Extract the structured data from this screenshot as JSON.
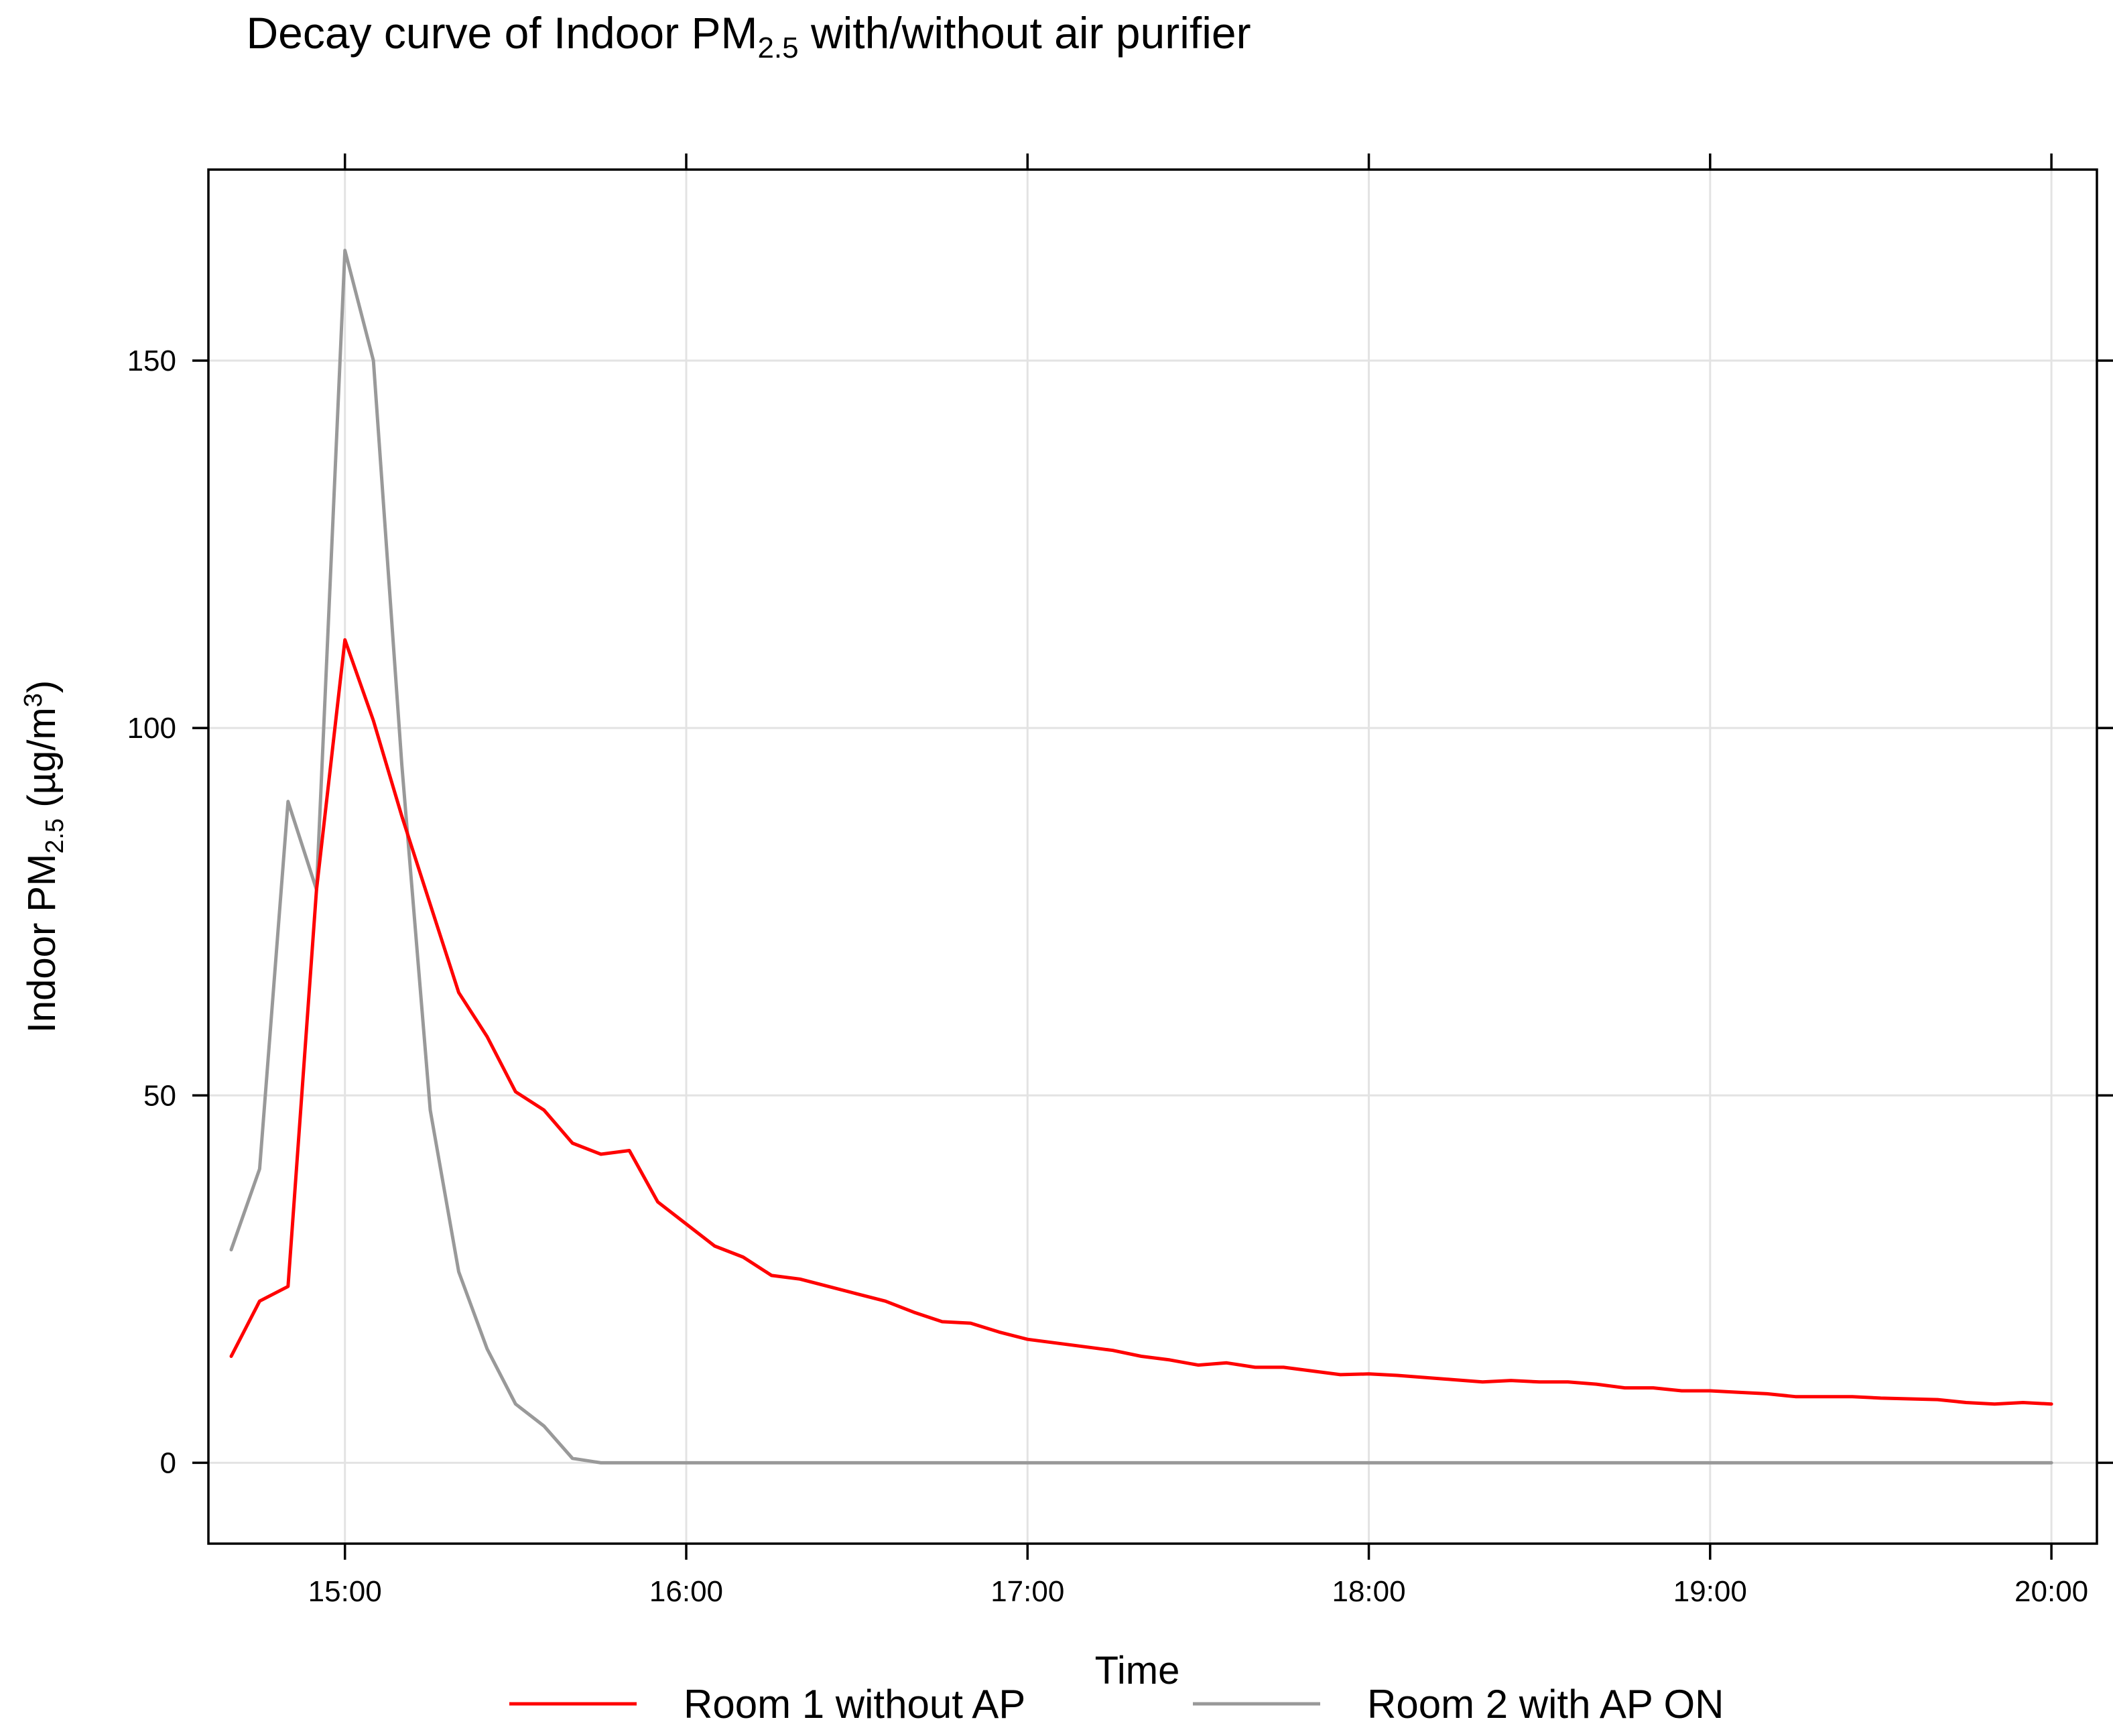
{
  "chart_data": {
    "type": "line",
    "title": {
      "prefix": "Decay curve of Indoor PM",
      "subscript": "2.5",
      "suffix": " with/without air purifier"
    },
    "xlabel": "Time",
    "ylabel": {
      "prefix": "Indoor PM",
      "subscript": "2.5",
      "middle": " (µg/m",
      "superscript": "3",
      "suffix": ")"
    },
    "x_unit": "clock time (HH:MM)",
    "xlim": [
      "14:36",
      "20:08"
    ],
    "ylim": [
      -11,
      176
    ],
    "x_ticks": [
      "15:00",
      "16:00",
      "17:00",
      "18:00",
      "19:00",
      "20:00"
    ],
    "y_ticks": [
      "0",
      "50",
      "100",
      "150"
    ],
    "grid": true,
    "legend_position": "bottom",
    "series": [
      {
        "name": "Room 1 without AP",
        "color": "#ff0000",
        "x": [
          "14:40",
          "14:45",
          "14:50",
          "14:55",
          "15:00",
          "15:05",
          "15:10",
          "15:15",
          "15:20",
          "15:25",
          "15:30",
          "15:35",
          "15:40",
          "15:45",
          "15:50",
          "15:55",
          "16:00",
          "16:05",
          "16:10",
          "16:15",
          "16:20",
          "16:25",
          "16:30",
          "16:35",
          "16:40",
          "16:45",
          "16:50",
          "16:55",
          "17:00",
          "17:05",
          "17:10",
          "17:15",
          "17:20",
          "17:25",
          "17:30",
          "17:35",
          "17:40",
          "17:45",
          "17:50",
          "17:55",
          "18:00",
          "18:05",
          "18:10",
          "18:15",
          "18:20",
          "18:25",
          "18:30",
          "18:35",
          "18:40",
          "18:45",
          "18:50",
          "18:55",
          "19:00",
          "19:05",
          "19:10",
          "19:15",
          "19:20",
          "19:25",
          "19:30",
          "19:35",
          "19:40",
          "19:45",
          "19:50",
          "19:55",
          "20:00"
        ],
        "values": [
          14.5,
          22,
          24,
          78,
          112,
          101,
          88,
          76,
          64,
          58,
          50.5,
          48,
          43.5,
          42,
          42.5,
          35.5,
          32.5,
          29.5,
          28,
          25.5,
          25,
          24,
          23,
          22,
          20.5,
          19.2,
          19,
          17.8,
          16.8,
          16.3,
          15.8,
          15.3,
          14.5,
          14,
          13.3,
          13.6,
          13,
          13,
          12.5,
          12,
          12.1,
          11.9,
          11.6,
          11.3,
          11,
          11.2,
          11,
          11,
          10.7,
          10.2,
          10.2,
          9.8,
          9.8,
          9.6,
          9.4,
          9,
          9,
          9,
          8.8,
          8.7,
          8.6,
          8.2,
          8,
          8.2,
          8
        ]
      },
      {
        "name": "Room 2 with AP ON",
        "color": "#999999",
        "x": [
          "14:40",
          "14:45",
          "14:50",
          "14:55",
          "15:00",
          "15:05",
          "15:10",
          "15:15",
          "15:20",
          "15:25",
          "15:30",
          "15:35",
          "15:40",
          "15:45",
          "15:50",
          "15:55",
          "16:00",
          "16:30",
          "17:00",
          "17:30",
          "18:00",
          "18:30",
          "19:00",
          "19:30",
          "20:00"
        ],
        "values": [
          29,
          40,
          90,
          78,
          165,
          150,
          95,
          48,
          26,
          15.5,
          8,
          5,
          0.6,
          0,
          0,
          0,
          0,
          0,
          0,
          0,
          0,
          0,
          0,
          0,
          0
        ]
      }
    ]
  }
}
